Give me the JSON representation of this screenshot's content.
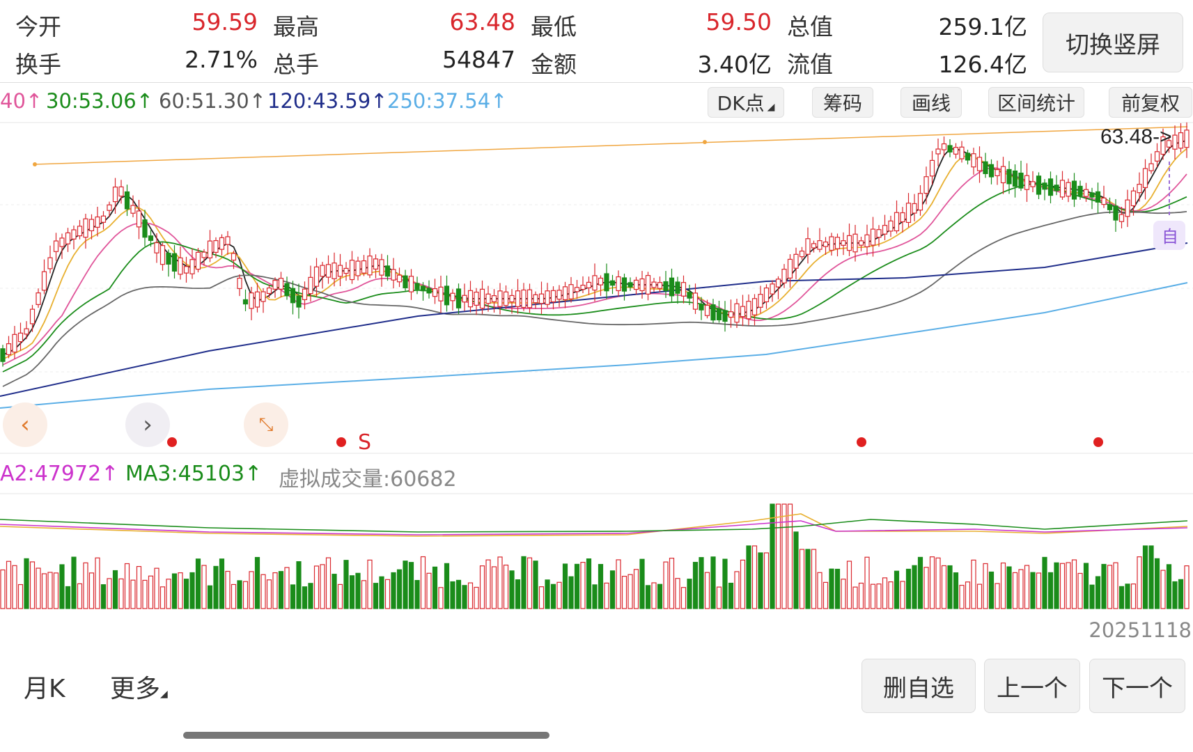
{
  "stats": {
    "row1": [
      {
        "label": "今开",
        "value": "59.59",
        "tone": "red"
      },
      {
        "label": "最高",
        "value": "63.48",
        "tone": "red"
      },
      {
        "label": "最低",
        "value": "59.50",
        "tone": "red"
      },
      {
        "label": "总值",
        "value": "259.1亿",
        "tone": "dark"
      }
    ],
    "row2": [
      {
        "label": "换手",
        "value": "2.71%",
        "tone": "dark"
      },
      {
        "label": "总手",
        "value": "54847",
        "tone": "dark"
      },
      {
        "label": "金额",
        "value": "3.40亿",
        "tone": "dark"
      },
      {
        "label": "流值",
        "value": "126.4亿",
        "tone": "dark"
      }
    ]
  },
  "switch_button_label": "切换竖屏",
  "ma_indicators": [
    {
      "text": "40↑",
      "color": "#e0559a"
    },
    {
      "text": "30:53.06↑",
      "color": "#1a8c1a"
    },
    {
      "text": "60:51.30↑",
      "color": "#555555"
    },
    {
      "text": "120:43.59↑",
      "color": "#1f2d8a"
    },
    {
      "text": "250:37.54↑",
      "color": "#5aaee6"
    }
  ],
  "toolbar": {
    "dk_label": "DK点",
    "chips_label": "筹码",
    "draw_label": "画线",
    "range_label": "区间统计",
    "adjust_label": "前复权"
  },
  "chart_overlay": {
    "max_marker": "63.48->",
    "self_select_tag": "自",
    "signal_letter": "S"
  },
  "volume_indicators": [
    {
      "text": "A2:47972↑",
      "color": "#cc33cc"
    },
    {
      "text": "MA3:45103↑",
      "color": "#1a8c1a"
    },
    {
      "text": "虚拟成交量:60682",
      "color": "#888888"
    }
  ],
  "colors": {
    "up": "#d9262c",
    "down": "#1a8c1a",
    "ma5": "#222222",
    "ma10": "#e8b030",
    "ma20": "#e0559a",
    "ma30": "#1a8c1a",
    "ma60": "#666666",
    "ma120": "#1f2d8a",
    "ma250": "#5aaee6",
    "trendline": "#f0a640"
  },
  "chart_data": {
    "type": "candlestick",
    "title": "",
    "y_current_high": 63.48,
    "last_date": "20251118",
    "moving_averages": [
      "MA5",
      "MA10",
      "MA20",
      "MA30",
      "MA60",
      "MA120",
      "MA250"
    ],
    "volume_ma": [
      "A2",
      "MA3"
    ]
  },
  "footer": {
    "date": "20251118",
    "period_label": "月K",
    "more_label": "更多",
    "remove_watch": "删自选",
    "prev": "上一个",
    "next": "下一个"
  }
}
